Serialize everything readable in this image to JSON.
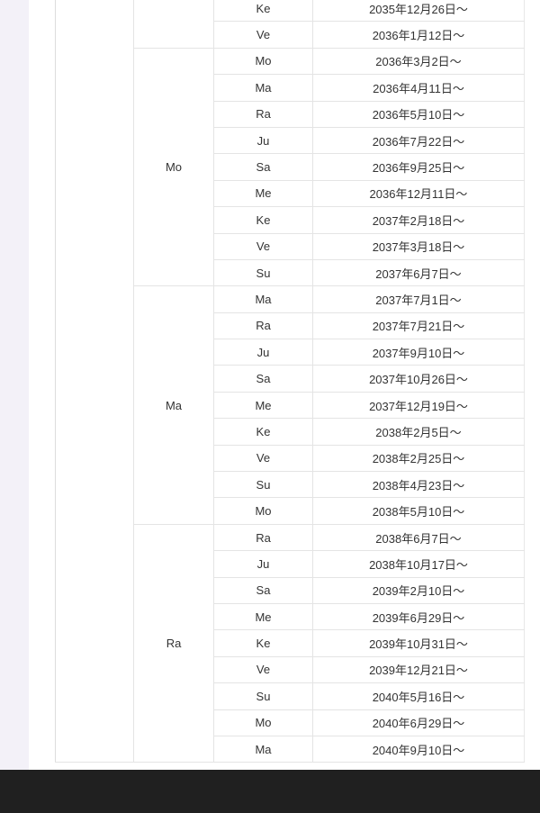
{
  "table": {
    "groups": [
      {
        "label": "",
        "rows": [
          [
            "Ke",
            "2035年12月26日～"
          ],
          [
            "Ve",
            "2036年1月12日～"
          ]
        ]
      },
      {
        "label": "Mo",
        "rows": [
          [
            "Mo",
            "2036年3月2日～"
          ],
          [
            "Ma",
            "2036年4月11日～"
          ],
          [
            "Ra",
            "2036年5月10日～"
          ],
          [
            "Ju",
            "2036年7月22日～"
          ],
          [
            "Sa",
            "2036年9月25日～"
          ],
          [
            "Me",
            "2036年12月11日～"
          ],
          [
            "Ke",
            "2037年2月18日～"
          ],
          [
            "Ve",
            "2037年3月18日～"
          ],
          [
            "Su",
            "2037年6月7日～"
          ]
        ]
      },
      {
        "label": "Ma",
        "rows": [
          [
            "Ma",
            "2037年7月1日～"
          ],
          [
            "Ra",
            "2037年7月21日～"
          ],
          [
            "Ju",
            "2037年9月10日～"
          ],
          [
            "Sa",
            "2037年10月26日～"
          ],
          [
            "Me",
            "2037年12月19日～"
          ],
          [
            "Ke",
            "2038年2月5日～"
          ],
          [
            "Ve",
            "2038年2月25日～"
          ],
          [
            "Su",
            "2038年4月23日～"
          ],
          [
            "Mo",
            "2038年5月10日～"
          ]
        ]
      },
      {
        "label": "Ra",
        "rows": [
          [
            "Ra",
            "2038年6月7日～"
          ],
          [
            "Ju",
            "2038年10月17日～"
          ],
          [
            "Sa",
            "2039年2月10日～"
          ],
          [
            "Me",
            "2039年6月29日～"
          ],
          [
            "Ke",
            "2039年10月31日～"
          ],
          [
            "Ve",
            "2039年12月21日～"
          ],
          [
            "Su",
            "2040年5月16日～"
          ],
          [
            "Mo",
            "2040年6月29日～"
          ],
          [
            "Ma",
            "2040年9月10日～"
          ]
        ]
      }
    ]
  }
}
